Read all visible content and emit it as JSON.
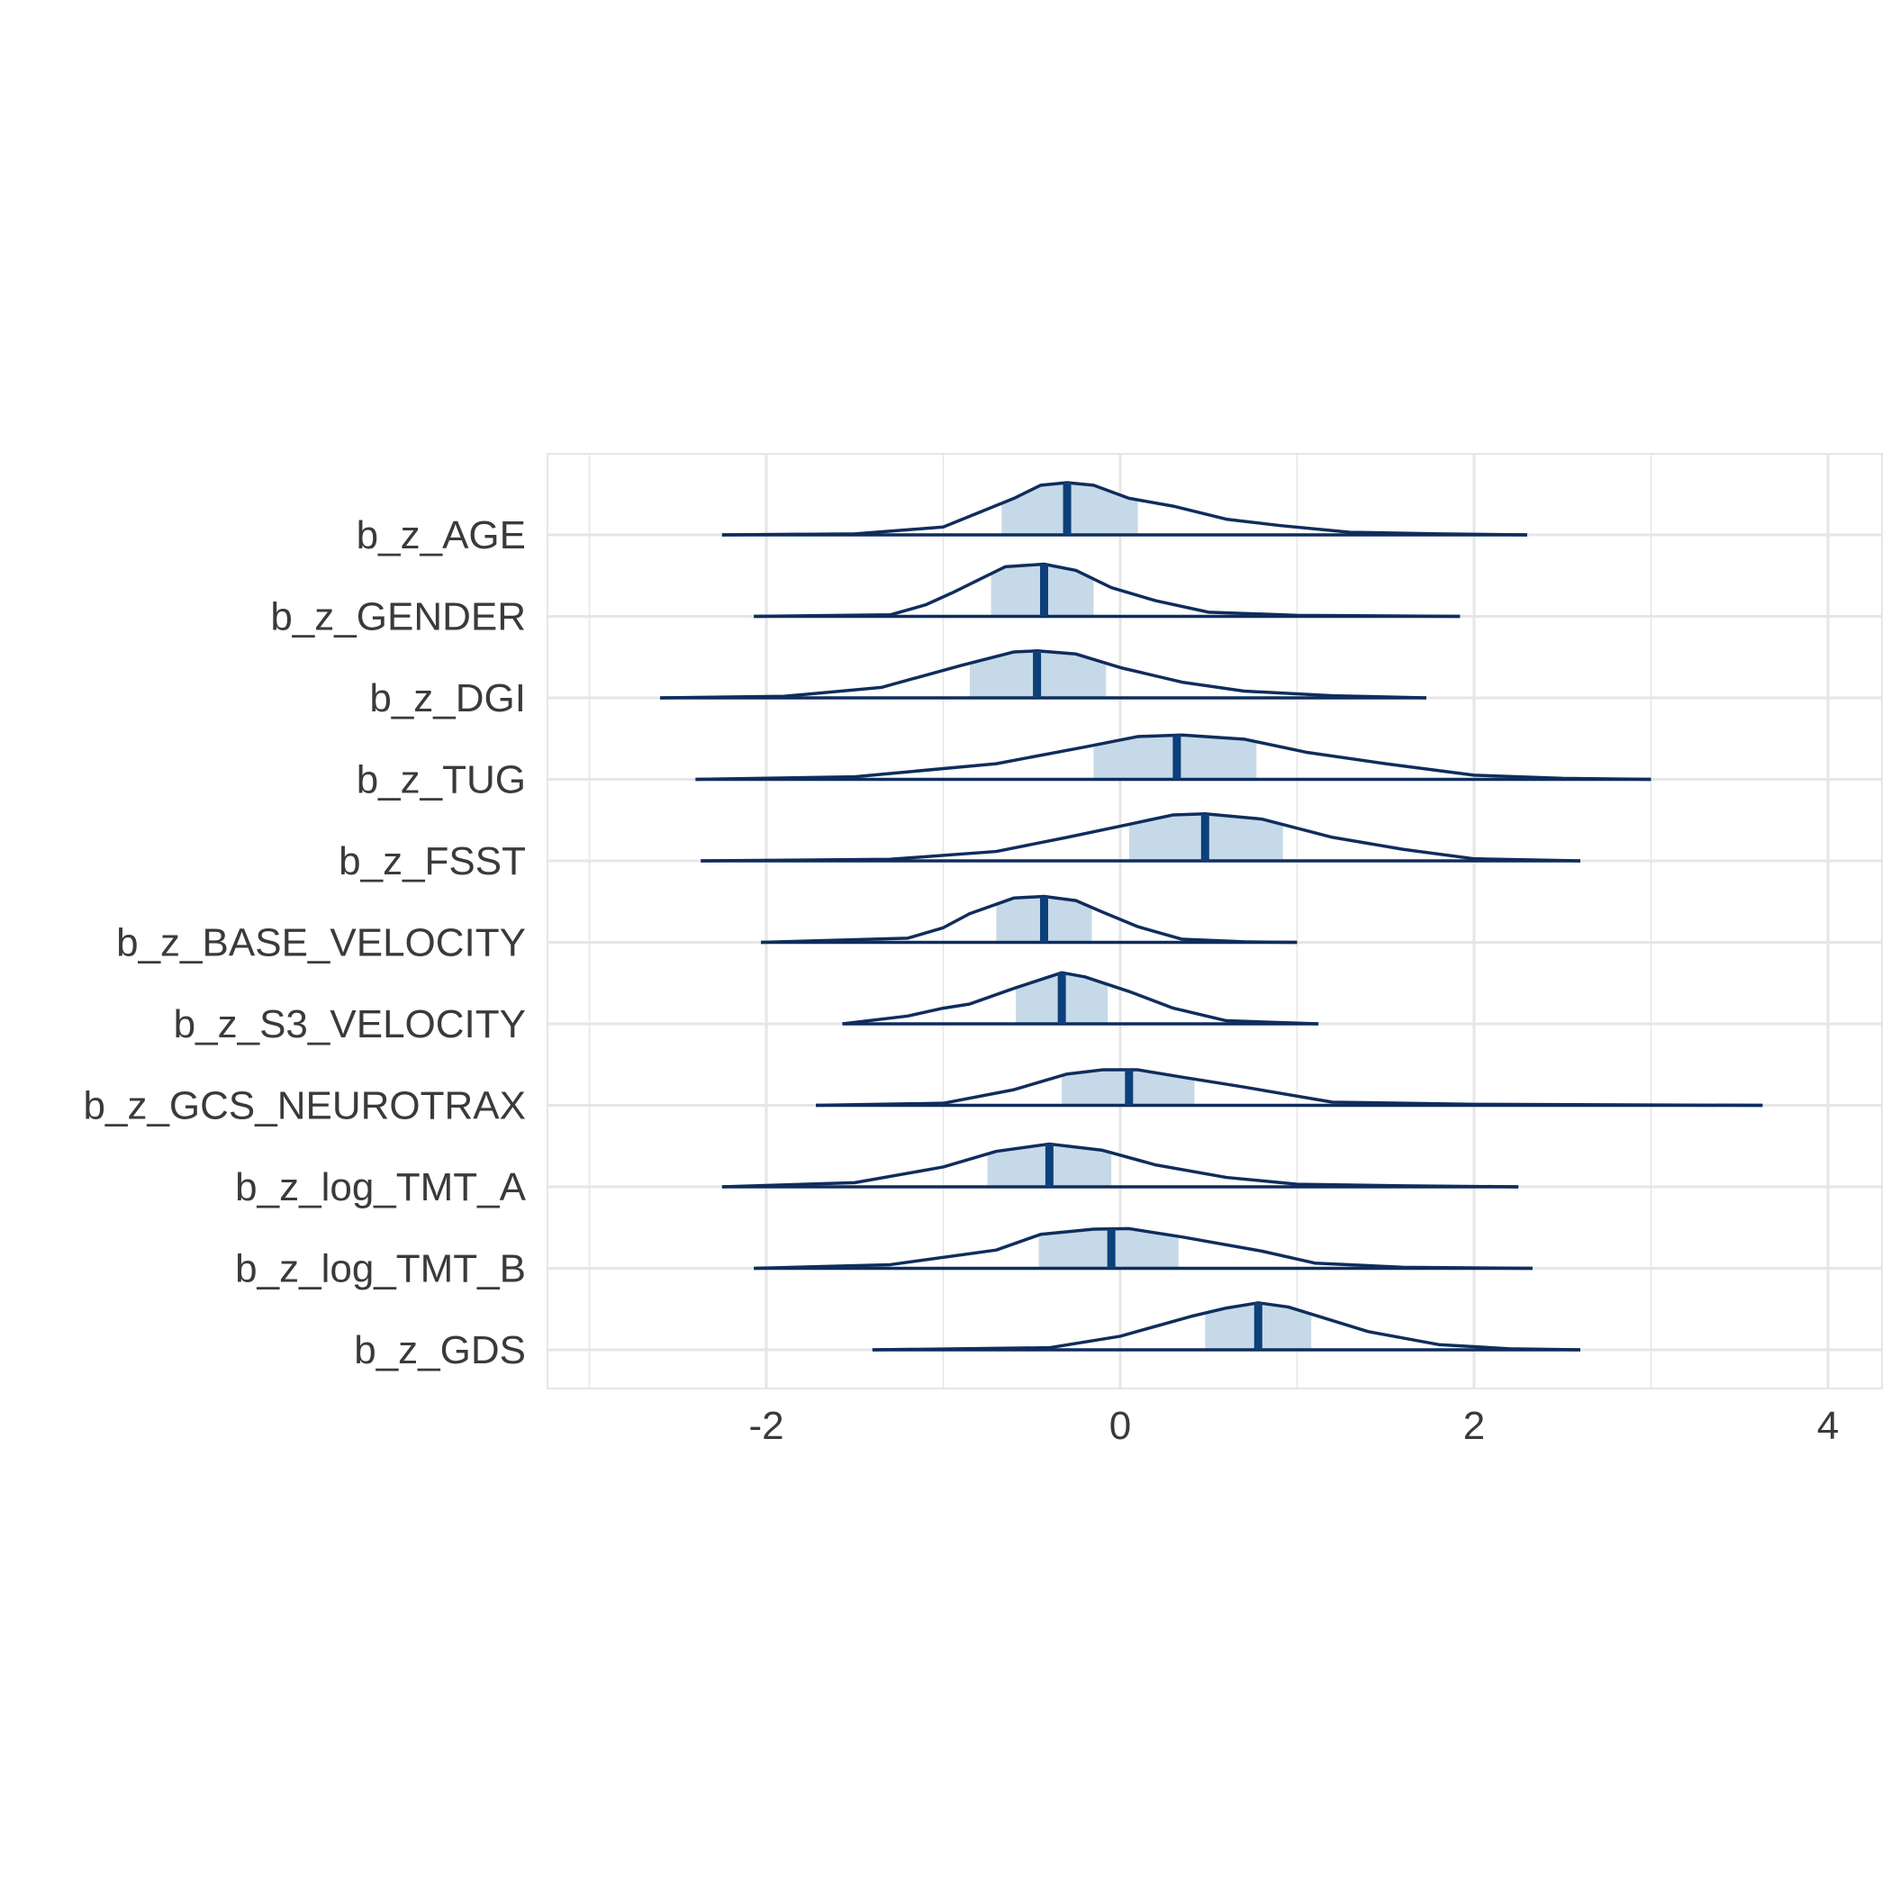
{
  "chart_data": {
    "type": "density-ridge",
    "title": "",
    "xlabel": "",
    "ylabel": "",
    "xlim": [
      -3.0,
      4.3
    ],
    "x_ticks": [
      "-2",
      "0",
      "2",
      "4"
    ],
    "x_tick_values": [
      -2,
      0,
      2,
      4
    ],
    "x_minor_ticks": [
      -3,
      -1,
      1,
      3
    ],
    "grid": true,
    "colors": {
      "line": "#0f2d5c",
      "median": "#0d3f7a",
      "interval_fill": "#c6d9e8",
      "grid": "#e6e6e6",
      "text": "#3a3a3a"
    },
    "parameters": [
      {
        "label": "b_z_AGE",
        "min": -2.25,
        "max": 2.3,
        "ci": [
          -0.67,
          0.1
        ],
        "median": -0.3,
        "density": [
          [
            -2.25,
            0
          ],
          [
            -1.5,
            0.02
          ],
          [
            -1.0,
            0.15
          ],
          [
            -0.6,
            0.7
          ],
          [
            -0.45,
            0.95
          ],
          [
            -0.3,
            1.0
          ],
          [
            -0.15,
            0.95
          ],
          [
            0.05,
            0.7
          ],
          [
            0.3,
            0.55
          ],
          [
            0.6,
            0.3
          ],
          [
            0.9,
            0.18
          ],
          [
            1.3,
            0.05
          ],
          [
            1.8,
            0.02
          ],
          [
            2.3,
            0
          ]
        ]
      },
      {
        "label": "b_z_GENDER",
        "min": -2.07,
        "max": 1.92,
        "ci": [
          -0.73,
          -0.15
        ],
        "median": -0.43,
        "density": [
          [
            -2.07,
            0
          ],
          [
            -1.3,
            0.03
          ],
          [
            -1.1,
            0.22
          ],
          [
            -0.95,
            0.45
          ],
          [
            -0.65,
            0.95
          ],
          [
            -0.43,
            1.0
          ],
          [
            -0.25,
            0.88
          ],
          [
            -0.05,
            0.55
          ],
          [
            0.2,
            0.3
          ],
          [
            0.5,
            0.08
          ],
          [
            1.0,
            0.02
          ],
          [
            1.92,
            0
          ]
        ]
      },
      {
        "label": "b_z_DGI",
        "min": -2.6,
        "max": 1.73,
        "ci": [
          -0.85,
          -0.08
        ],
        "median": -0.47,
        "density": [
          [
            -2.6,
            0
          ],
          [
            -1.9,
            0.03
          ],
          [
            -1.35,
            0.2
          ],
          [
            -0.9,
            0.62
          ],
          [
            -0.6,
            0.88
          ],
          [
            -0.47,
            0.9
          ],
          [
            -0.25,
            0.84
          ],
          [
            0.0,
            0.58
          ],
          [
            0.35,
            0.3
          ],
          [
            0.7,
            0.13
          ],
          [
            1.2,
            0.04
          ],
          [
            1.73,
            0
          ]
        ]
      },
      {
        "label": "b_z_TUG",
        "min": -2.4,
        "max": 3.0,
        "ci": [
          -0.15,
          0.77
        ],
        "median": 0.32,
        "density": [
          [
            -2.4,
            0
          ],
          [
            -1.5,
            0.05
          ],
          [
            -0.7,
            0.3
          ],
          [
            -0.2,
            0.62
          ],
          [
            0.1,
            0.82
          ],
          [
            0.35,
            0.85
          ],
          [
            0.7,
            0.77
          ],
          [
            1.05,
            0.52
          ],
          [
            1.5,
            0.3
          ],
          [
            2.0,
            0.08
          ],
          [
            2.5,
            0.02
          ],
          [
            3.0,
            0
          ]
        ]
      },
      {
        "label": "b_z_FSST",
        "min": -2.37,
        "max": 2.6,
        "ci": [
          0.05,
          0.92
        ],
        "median": 0.48,
        "density": [
          [
            -2.37,
            0
          ],
          [
            -1.3,
            0.03
          ],
          [
            -0.7,
            0.18
          ],
          [
            -0.3,
            0.45
          ],
          [
            0.05,
            0.7
          ],
          [
            0.3,
            0.88
          ],
          [
            0.48,
            0.9
          ],
          [
            0.8,
            0.8
          ],
          [
            1.2,
            0.45
          ],
          [
            1.6,
            0.22
          ],
          [
            2.0,
            0.04
          ],
          [
            2.6,
            0
          ]
        ]
      },
      {
        "label": "b_z_BASE_VELOCITY",
        "min": -2.03,
        "max": 1.0,
        "ci": [
          -0.7,
          -0.16
        ],
        "median": -0.43,
        "density": [
          [
            -2.03,
            0
          ],
          [
            -1.2,
            0.08
          ],
          [
            -1.0,
            0.28
          ],
          [
            -0.85,
            0.55
          ],
          [
            -0.6,
            0.85
          ],
          [
            -0.43,
            0.88
          ],
          [
            -0.25,
            0.8
          ],
          [
            -0.1,
            0.58
          ],
          [
            0.1,
            0.3
          ],
          [
            0.35,
            0.06
          ],
          [
            0.7,
            0.01
          ],
          [
            1.0,
            0
          ]
        ]
      },
      {
        "label": "b_z_S3_VELOCITY",
        "min": -1.57,
        "max": 1.12,
        "ci": [
          -0.59,
          -0.07
        ],
        "median": -0.33,
        "density": [
          [
            -1.57,
            0
          ],
          [
            -1.2,
            0.15
          ],
          [
            -1.0,
            0.3
          ],
          [
            -0.85,
            0.38
          ],
          [
            -0.6,
            0.68
          ],
          [
            -0.33,
            0.98
          ],
          [
            -0.2,
            0.9
          ],
          [
            0.05,
            0.62
          ],
          [
            0.3,
            0.3
          ],
          [
            0.6,
            0.06
          ],
          [
            1.12,
            0
          ]
        ]
      },
      {
        "label": "b_z_GCS_NEUROTRAX",
        "min": -1.72,
        "max": 3.63,
        "ci": [
          -0.33,
          0.42
        ],
        "median": 0.05,
        "density": [
          [
            -1.72,
            0
          ],
          [
            -1.0,
            0.04
          ],
          [
            -0.6,
            0.3
          ],
          [
            -0.3,
            0.6
          ],
          [
            -0.1,
            0.68
          ],
          [
            0.1,
            0.68
          ],
          [
            0.35,
            0.54
          ],
          [
            0.7,
            0.35
          ],
          [
            1.2,
            0.06
          ],
          [
            2.0,
            0.02
          ],
          [
            3.63,
            0
          ]
        ]
      },
      {
        "label": "b_z_log_TMT_A",
        "min": -2.25,
        "max": 2.25,
        "ci": [
          -0.75,
          -0.05
        ],
        "median": -0.4,
        "density": [
          [
            -2.25,
            0
          ],
          [
            -1.5,
            0.08
          ],
          [
            -1.0,
            0.38
          ],
          [
            -0.7,
            0.68
          ],
          [
            -0.4,
            0.82
          ],
          [
            -0.1,
            0.7
          ],
          [
            0.2,
            0.42
          ],
          [
            0.6,
            0.18
          ],
          [
            1.0,
            0.05
          ],
          [
            1.6,
            0.02
          ],
          [
            2.25,
            0
          ]
        ]
      },
      {
        "label": "b_z_log_TMT_B",
        "min": -2.07,
        "max": 2.33,
        "ci": [
          -0.46,
          0.33
        ],
        "median": -0.05,
        "density": [
          [
            -2.07,
            0
          ],
          [
            -1.3,
            0.07
          ],
          [
            -0.7,
            0.35
          ],
          [
            -0.45,
            0.65
          ],
          [
            -0.15,
            0.75
          ],
          [
            0.05,
            0.76
          ],
          [
            0.35,
            0.6
          ],
          [
            0.8,
            0.33
          ],
          [
            1.1,
            0.1
          ],
          [
            1.6,
            0.02
          ],
          [
            2.33,
            0
          ]
        ]
      },
      {
        "label": "b_z_GDS",
        "min": -1.4,
        "max": 2.6,
        "ci": [
          0.48,
          1.08
        ],
        "median": 0.78,
        "density": [
          [
            -1.4,
            0
          ],
          [
            -0.4,
            0.04
          ],
          [
            0.0,
            0.26
          ],
          [
            0.4,
            0.64
          ],
          [
            0.6,
            0.8
          ],
          [
            0.78,
            0.9
          ],
          [
            0.95,
            0.82
          ],
          [
            1.4,
            0.35
          ],
          [
            1.8,
            0.1
          ],
          [
            2.2,
            0.02
          ],
          [
            2.6,
            0
          ]
        ]
      }
    ]
  }
}
